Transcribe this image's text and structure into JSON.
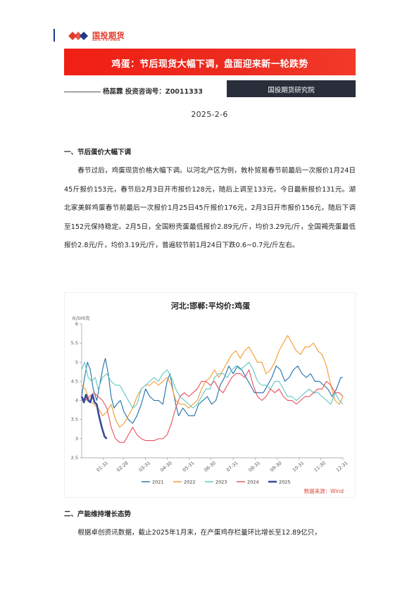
{
  "header": {
    "logo_cn": "国投期货",
    "logo_en": "SDIC FUTURES"
  },
  "title": "鸡蛋：节后现货大幅下调，盘面迎来新一轮跌势",
  "author": "杨蕊霖 投资咨询号：Z0011333",
  "institute": "国投期货研究院",
  "date": "2025-2-6",
  "sections": [
    {
      "heading": "一、节后蛋价大幅下调",
      "paragraph": "春节过后，鸡蛋现货价格大幅下调。以河北产区为例，敦朴贸易春节前最后一次报价1月24日45斤报价153元，春节后2月3日开市报价128元，随后上调至133元，今日最新报价131元。湖北家美鲜鸡蛋春节前最后一次报价1月25日45斤报价176元，2月3日开市报价156元，随后下调至152元保持稳定。2月5日，全国粉壳蛋最低报价2.89元/斤，均价3.29元/斤，全国褐壳蛋最低报价2.8元/斤，均价3.19元/斤，普遍较节前1月24日下跌0.6~0.7元/斤左右。"
    },
    {
      "heading": "二、产能维持增长态势",
      "paragraph": "根据卓创资讯数据，截止2025年1月末，在产蛋鸡存栏量环比增长至12.89亿只，"
    }
  ],
  "chart_data": {
    "type": "line",
    "title": "河北:邯郸:平均价:鸡蛋",
    "ylabel": "元/500克",
    "ylim": [
      2.5,
      6
    ],
    "yticks": [
      "2.5",
      "3",
      "3.5",
      "4",
      "4.5",
      "5",
      "5.5",
      "6"
    ],
    "x_ticks": [
      "01-31",
      "02-28",
      "03-31",
      "04-30",
      "05-31",
      "06-30",
      "07-31",
      "08-31",
      "09-30",
      "10-31",
      "11-30",
      "12-31"
    ],
    "x_unit": "day of year (1-365)",
    "source": "数据来源：Wind",
    "colors": {
      "2021": "#1f6fa8",
      "2022": "#f39a2b",
      "2023": "#5fc7c0",
      "2024": "#e8505b",
      "2025": "#3b4a9b"
    },
    "series": [
      {
        "name": "2021",
        "points": [
          [
            1,
            4.1
          ],
          [
            5,
            4.6
          ],
          [
            9,
            5.0
          ],
          [
            13,
            4.8
          ],
          [
            17,
            4.3
          ],
          [
            22,
            4.0
          ],
          [
            27,
            4.5
          ],
          [
            31,
            4.9
          ],
          [
            34,
            5.1
          ],
          [
            38,
            4.7
          ],
          [
            42,
            4.1
          ],
          [
            46,
            3.8
          ],
          [
            50,
            3.9
          ],
          [
            55,
            4.0
          ],
          [
            60,
            3.7
          ],
          [
            66,
            3.5
          ],
          [
            72,
            3.4
          ],
          [
            78,
            3.6
          ],
          [
            84,
            3.9
          ],
          [
            90,
            4.3
          ],
          [
            96,
            4.1
          ],
          [
            102,
            4.0
          ],
          [
            108,
            4.0
          ],
          [
            114,
            3.9
          ],
          [
            120,
            4.5
          ],
          [
            124,
            4.7
          ],
          [
            128,
            4.3
          ],
          [
            132,
            3.9
          ],
          [
            136,
            3.6
          ],
          [
            142,
            3.8
          ],
          [
            150,
            3.6
          ],
          [
            158,
            3.6
          ],
          [
            164,
            3.9
          ],
          [
            170,
            4.0
          ],
          [
            176,
            4.1
          ],
          [
            182,
            3.9
          ],
          [
            188,
            4.0
          ],
          [
            194,
            4.4
          ],
          [
            200,
            4.6
          ],
          [
            206,
            4.9
          ],
          [
            212,
            4.7
          ],
          [
            218,
            4.9
          ],
          [
            224,
            4.8
          ],
          [
            230,
            4.6
          ],
          [
            236,
            4.4
          ],
          [
            242,
            4.2
          ],
          [
            248,
            4.2
          ],
          [
            254,
            4.2
          ],
          [
            260,
            4.4
          ],
          [
            266,
            4.6
          ],
          [
            272,
            4.9
          ],
          [
            278,
            4.8
          ],
          [
            284,
            4.5
          ],
          [
            290,
            4.6
          ],
          [
            296,
            4.8
          ],
          [
            302,
            4.9
          ],
          [
            308,
            4.7
          ],
          [
            314,
            4.6
          ],
          [
            320,
            4.7
          ],
          [
            326,
            4.5
          ],
          [
            332,
            4.5
          ],
          [
            338,
            4.4
          ],
          [
            344,
            4.3
          ],
          [
            350,
            4.1
          ],
          [
            356,
            4.3
          ],
          [
            362,
            4.6
          ],
          [
            365,
            4.6
          ]
        ]
      },
      {
        "name": "2022",
        "points": [
          [
            1,
            4.4
          ],
          [
            6,
            4.3
          ],
          [
            12,
            4.0
          ],
          [
            18,
            3.9
          ],
          [
            24,
            3.8
          ],
          [
            30,
            3.6
          ],
          [
            36,
            3.7
          ],
          [
            42,
            3.9
          ],
          [
            48,
            3.5
          ],
          [
            54,
            3.3
          ],
          [
            60,
            3.4
          ],
          [
            66,
            3.6
          ],
          [
            72,
            3.8
          ],
          [
            78,
            4.1
          ],
          [
            84,
            4.3
          ],
          [
            90,
            4.4
          ],
          [
            96,
            4.4
          ],
          [
            102,
            4.5
          ],
          [
            108,
            4.4
          ],
          [
            114,
            4.5
          ],
          [
            120,
            4.6
          ],
          [
            126,
            4.4
          ],
          [
            132,
            4.0
          ],
          [
            138,
            3.9
          ],
          [
            144,
            3.9
          ],
          [
            150,
            3.8
          ],
          [
            156,
            3.9
          ],
          [
            162,
            4.0
          ],
          [
            168,
            4.3
          ],
          [
            174,
            4.5
          ],
          [
            180,
            4.6
          ],
          [
            186,
            4.8
          ],
          [
            192,
            4.6
          ],
          [
            198,
            4.8
          ],
          [
            204,
            5.0
          ],
          [
            210,
            5.2
          ],
          [
            216,
            5.3
          ],
          [
            222,
            5.1
          ],
          [
            228,
            5.3
          ],
          [
            234,
            5.4
          ],
          [
            240,
            5.2
          ],
          [
            246,
            5.0
          ],
          [
            252,
            5.0
          ],
          [
            258,
            4.7
          ],
          [
            264,
            4.8
          ],
          [
            270,
            5.0
          ],
          [
            276,
            5.3
          ],
          [
            282,
            5.5
          ],
          [
            288,
            5.7
          ],
          [
            294,
            5.5
          ],
          [
            300,
            5.3
          ],
          [
            306,
            5.2
          ],
          [
            312,
            5.4
          ],
          [
            318,
            5.4
          ],
          [
            324,
            5.5
          ],
          [
            330,
            5.3
          ],
          [
            336,
            5.2
          ],
          [
            342,
            4.9
          ],
          [
            348,
            4.4
          ],
          [
            354,
            4.0
          ],
          [
            360,
            3.9
          ],
          [
            365,
            4.1
          ]
        ]
      },
      {
        "name": "2023",
        "points": [
          [
            1,
            4.8
          ],
          [
            5,
            5.0
          ],
          [
            10,
            4.6
          ],
          [
            15,
            4.5
          ],
          [
            20,
            4.6
          ],
          [
            24,
            4.3
          ],
          [
            30,
            4.6
          ],
          [
            36,
            4.7
          ],
          [
            42,
            4.5
          ],
          [
            48,
            4.4
          ],
          [
            54,
            4.4
          ],
          [
            60,
            4.2
          ],
          [
            66,
            4.0
          ],
          [
            72,
            3.8
          ],
          [
            78,
            3.9
          ],
          [
            84,
            4.3
          ],
          [
            90,
            4.4
          ],
          [
            96,
            4.5
          ],
          [
            102,
            4.6
          ],
          [
            108,
            4.5
          ],
          [
            114,
            4.7
          ],
          [
            120,
            4.8
          ],
          [
            126,
            4.6
          ],
          [
            132,
            4.3
          ],
          [
            138,
            4.1
          ],
          [
            144,
            4.0
          ],
          [
            150,
            3.9
          ],
          [
            156,
            3.8
          ],
          [
            162,
            3.9
          ],
          [
            168,
            4.1
          ],
          [
            174,
            4.3
          ],
          [
            180,
            4.3
          ],
          [
            186,
            4.6
          ],
          [
            192,
            4.7
          ],
          [
            198,
            4.7
          ],
          [
            204,
            4.6
          ],
          [
            210,
            4.8
          ],
          [
            216,
            4.9
          ],
          [
            222,
            4.8
          ],
          [
            228,
            4.9
          ],
          [
            234,
            5.0
          ],
          [
            240,
            4.8
          ],
          [
            246,
            4.5
          ],
          [
            252,
            4.4
          ],
          [
            258,
            4.4
          ],
          [
            264,
            4.3
          ],
          [
            270,
            4.5
          ],
          [
            276,
            4.5
          ],
          [
            282,
            4.3
          ],
          [
            288,
            4.1
          ],
          [
            294,
            4.1
          ],
          [
            300,
            4.0
          ],
          [
            306,
            4.1
          ],
          [
            312,
            4.2
          ],
          [
            318,
            4.3
          ],
          [
            324,
            4.2
          ],
          [
            330,
            4.2
          ],
          [
            336,
            4.1
          ],
          [
            342,
            4.0
          ],
          [
            348,
            3.9
          ],
          [
            354,
            4.2
          ],
          [
            360,
            4.0
          ],
          [
            365,
            3.9
          ]
        ]
      },
      {
        "name": "2024",
        "points": [
          [
            1,
            4.1
          ],
          [
            6,
            4.0
          ],
          [
            12,
            4.1
          ],
          [
            18,
            4.2
          ],
          [
            24,
            4.1
          ],
          [
            30,
            4.0
          ],
          [
            36,
            3.8
          ],
          [
            42,
            3.3
          ],
          [
            48,
            3.0
          ],
          [
            54,
            2.9
          ],
          [
            60,
            2.9
          ],
          [
            66,
            3.1
          ],
          [
            72,
            3.3
          ],
          [
            78,
            3.1
          ],
          [
            84,
            3.0
          ],
          [
            90,
            2.95
          ],
          [
            96,
            2.95
          ],
          [
            102,
            2.95
          ],
          [
            108,
            3.0
          ],
          [
            114,
            3.0
          ],
          [
            120,
            3.1
          ],
          [
            126,
            3.4
          ],
          [
            132,
            3.8
          ],
          [
            138,
            4.1
          ],
          [
            144,
            4.2
          ],
          [
            150,
            4.1
          ],
          [
            156,
            4.2
          ],
          [
            162,
            4.3
          ],
          [
            168,
            4.5
          ],
          [
            174,
            4.5
          ],
          [
            180,
            4.4
          ],
          [
            186,
            4.5
          ],
          [
            192,
            4.3
          ],
          [
            198,
            4.2
          ],
          [
            204,
            4.4
          ],
          [
            210,
            4.6
          ],
          [
            216,
            4.7
          ],
          [
            222,
            4.7
          ],
          [
            228,
            4.6
          ],
          [
            234,
            4.8
          ],
          [
            240,
            4.4
          ],
          [
            246,
            4.1
          ],
          [
            252,
            4.0
          ],
          [
            258,
            4.1
          ],
          [
            264,
            4.3
          ],
          [
            270,
            4.2
          ],
          [
            276,
            4.3
          ],
          [
            282,
            4.1
          ],
          [
            288,
            4.0
          ],
          [
            294,
            4.0
          ],
          [
            300,
            3.9
          ],
          [
            306,
            4.0
          ],
          [
            312,
            4.1
          ],
          [
            318,
            4.1
          ],
          [
            324,
            4.2
          ],
          [
            330,
            4.3
          ],
          [
            336,
            4.3
          ],
          [
            342,
            4.5
          ],
          [
            348,
            4.4
          ],
          [
            354,
            4.2
          ],
          [
            360,
            4.2
          ],
          [
            365,
            4.1
          ]
        ]
      },
      {
        "name": "2025",
        "points": [
          [
            1,
            4.1
          ],
          [
            4,
            3.95
          ],
          [
            7,
            4.15
          ],
          [
            10,
            4.0
          ],
          [
            13,
            3.95
          ],
          [
            16,
            4.15
          ],
          [
            19,
            3.95
          ],
          [
            22,
            3.9
          ],
          [
            25,
            3.6
          ],
          [
            29,
            3.3
          ],
          [
            33,
            3.05
          ],
          [
            36,
            3.0
          ]
        ]
      }
    ]
  }
}
